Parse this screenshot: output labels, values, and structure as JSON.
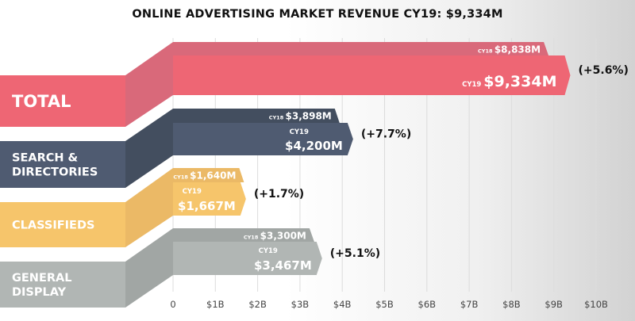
{
  "chart_data": {
    "type": "bar",
    "orientation": "horizontal",
    "title": "ONLINE ADVERTISING MARKET REVENUE CY19: $9,334M",
    "xlabel": "",
    "ylabel": "",
    "xlim": [
      0,
      10000
    ],
    "unit": "$M",
    "grid": true,
    "x_ticks": [
      {
        "value": 0,
        "label": "0"
      },
      {
        "value": 1000,
        "label": "$1B"
      },
      {
        "value": 2000,
        "label": "$2B"
      },
      {
        "value": 3000,
        "label": "$3B"
      },
      {
        "value": 4000,
        "label": "$4B"
      },
      {
        "value": 5000,
        "label": "$5B"
      },
      {
        "value": 6000,
        "label": "$6B"
      },
      {
        "value": 7000,
        "label": "$7B"
      },
      {
        "value": 8000,
        "label": "$8B"
      },
      {
        "value": 9000,
        "label": "$9B"
      },
      {
        "value": 10000,
        "label": "$10B"
      }
    ],
    "series_names": {
      "prior": "CY18",
      "current": "CY19"
    },
    "categories": [
      {
        "name": "TOTAL",
        "label_lines": [
          "TOTAL"
        ],
        "cy18": 8838,
        "cy18_label": "$8,838M",
        "cy19": 9334,
        "cy19_label": "$9,334M",
        "growth": "(+5.6%)",
        "color": "#ee6674",
        "color_dark": "#d9697a",
        "cy19_inline": true
      },
      {
        "name": "SEARCH & DIRECTORIES",
        "label_lines": [
          "SEARCH &",
          "DIRECTORIES"
        ],
        "cy18": 3898,
        "cy18_label": "$3,898M",
        "cy19": 4200,
        "cy19_label": "$4,200M",
        "growth": "(+7.7%)",
        "color": "#4f5b71",
        "color_dark": "#434e5f",
        "cy19_inline": false
      },
      {
        "name": "CLASSIFIEDS",
        "label_lines": [
          "CLASSIFIEDS"
        ],
        "cy18": 1640,
        "cy18_label": "$1,640M",
        "cy19": 1667,
        "cy19_label": "$1,667M",
        "growth": "(+1.7%)",
        "color": "#f6c56b",
        "color_dark": "#ebb966",
        "cy19_inline": false
      },
      {
        "name": "GENERAL DISPLAY",
        "label_lines": [
          "GENERAL",
          "DISPLAY"
        ],
        "cy18": 3300,
        "cy18_label": "$3,300M",
        "cy19": 3467,
        "cy19_label": "$3,467M",
        "growth": "(+5.1%)",
        "color": "#b1b6b4",
        "color_dark": "#a1a6a4",
        "cy19_inline": false
      }
    ]
  }
}
